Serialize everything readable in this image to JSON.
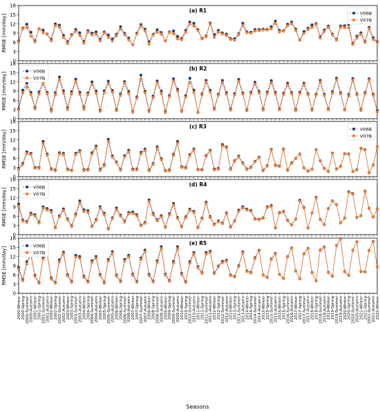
{
  "figure": {
    "xlabel": "Seasons",
    "ylabel": "RMSE [mm/day]",
    "series_colors": {
      "V06B": "#1f3f6e",
      "V07B": "#f07b32"
    },
    "categories": [
      "2000-Winter",
      "2000-Spring",
      "2000-Summer",
      "2000-Autumn",
      "2001-Winter",
      "2001-Spring",
      "2001-Summer",
      "2001-Autumn",
      "2002-Winter",
      "2002-Spring",
      "2002-Summer",
      "2002-Autumn",
      "2003-Winter",
      "2003-Spring",
      "2003-Summer",
      "2003-Autumn",
      "2004-Winter",
      "2004-Spring",
      "2004-Summer",
      "2004-Autumn",
      "2005-Winter",
      "2005-Spring",
      "2005-Summer",
      "2005-Autumn",
      "2006-Winter",
      "2006-Spring",
      "2006-Summer",
      "2006-Autumn",
      "2007-Winter",
      "2007-Spring",
      "2007-Summer",
      "2007-Autumn",
      "2008-Winter",
      "2008-Spring",
      "2008-Summer",
      "2008-Autumn",
      "2009-Winter",
      "2009-Spring",
      "2009-Summer",
      "2009-Autumn",
      "2010-Winter",
      "2010-Spring",
      "2010-Summer",
      "2010-Autumn",
      "2011-Winter",
      "2011-Spring",
      "2011-Summer",
      "2011-Autumn",
      "2012-Winter",
      "2012-Spring",
      "2012-Summer",
      "2012-Autumn",
      "2013-Winter",
      "2013-Spring",
      "2013-Summer",
      "2013-Autumn",
      "2014-Winter",
      "2014-Spring",
      "2014-Summer",
      "2014-Autumn",
      "2015-Winter",
      "2015-Spring",
      "2015-Summer",
      "2015-Autumn",
      "2016-Winter",
      "2016-Spring",
      "2016-Summer",
      "2016-Autumn",
      "2017-Winter",
      "2017-Spring",
      "2017-Summer",
      "2017-Autumn",
      "2018-Winter",
      "2018-Spring",
      "2018-Summer",
      "2018-Autumn",
      "2019-Winter",
      "2019-Spring",
      "2019-Summer",
      "2019-Autumn",
      "2020-Winter",
      "2020-Spring",
      "2020-Summer",
      "2020-Autumn",
      "2021-Winter",
      "2021-Spring",
      "2021-Summer",
      "2021-Autumn",
      "2022-Winter"
    ]
  },
  "chart_data": [
    {
      "type": "line",
      "title": "(a) R1",
      "ylim": [
        0,
        18
      ],
      "yticks": [
        0,
        3,
        6,
        9,
        12,
        15,
        18
      ],
      "legend_position": "upper-right",
      "series": [
        {
          "name": "V06B",
          "values": [
            6.5,
            10.6,
            11.9,
            9.3,
            6.5,
            10.4,
            10.0,
            8.7,
            7.0,
            12.0,
            11.6,
            8.3,
            6.2,
            8.5,
            10.2,
            9.1,
            6.3,
            9.8,
            9.0,
            9.4,
            7.0,
            9.4,
            8.4,
            7.1,
            8.6,
            11.1,
            8.9,
            7.4,
            5.2,
            9.0,
            11.8,
            10.3,
            6.2,
            8.6,
            10.1,
            9.2,
            6.5,
            9.4,
            9.7,
            7.9,
            7.2,
            9.9,
            12.6,
            12.2,
            10.1,
            7.3,
            8.1,
            12.3,
            8.5,
            9.9,
            9.1,
            8.7,
            7.2,
            7.2,
            8.8,
            12.2,
            9.4,
            9.3,
            10.2,
            10.2,
            10.3,
            10.2,
            11.1,
            12.9,
            9.9,
            9.8,
            11.9,
            12.6,
            10.3,
            6.8,
            9.5,
            10.6,
            11.7,
            12.1,
            7.8,
            10.0,
            11.3,
            8.7,
            7.0,
            11.3,
            11.4,
            11.8,
            5.7,
            8.0,
            9.1,
            6.3,
            10.9,
            7.5,
            6.2
          ]
        },
        {
          "name": "V07B",
          "values": [
            6.1,
            10.4,
            10.8,
            8.0,
            6.1,
            10.5,
            9.1,
            8.6,
            6.5,
            11.4,
            10.9,
            7.6,
            5.6,
            8.2,
            9.6,
            8.2,
            5.7,
            9.4,
            8.4,
            8.6,
            6.5,
            9.1,
            7.6,
            6.4,
            8.1,
            10.3,
            8.5,
            6.8,
            5.2,
            8.7,
            11.2,
            9.7,
            5.4,
            8.4,
            9.3,
            8.7,
            6.5,
            9.2,
            8.8,
            7.1,
            6.8,
            9.3,
            12.0,
            11.3,
            9.8,
            7.1,
            7.8,
            12.0,
            7.6,
            9.3,
            8.7,
            8.2,
            6.9,
            6.7,
            8.5,
            11.5,
            9.1,
            9.0,
            9.7,
            9.8,
            10.0,
            10.0,
            10.4,
            12.2,
            9.4,
            9.6,
            11.4,
            12.1,
            9.9,
            6.7,
            8.9,
            10.2,
            10.8,
            11.8,
            7.4,
            9.5,
            10.9,
            8.4,
            6.7,
            10.9,
            10.8,
            10.7,
            5.3,
            7.4,
            8.6,
            6.0,
            10.5,
            6.9,
            5.9
          ]
        }
      ]
    },
    {
      "type": "line",
      "title": "(b) R2",
      "ylim": [
        0,
        18
      ],
      "yticks": [
        0,
        3,
        6,
        9,
        12,
        15,
        18
      ],
      "legend_position": "upper-left",
      "series": [
        {
          "name": "V06B",
          "values": [
            3.2,
            9.3,
            11.6,
            8.6,
            3.7,
            8.7,
            12.0,
            8.6,
            3.0,
            8.5,
            13.6,
            9.1,
            3.6,
            8.8,
            12.9,
            8.6,
            3.7,
            8.4,
            12.0,
            9.0,
            2.8,
            9.1,
            12.2,
            9.2,
            3.0,
            8.1,
            12.1,
            8.9,
            2.4,
            7.1,
            14.2,
            9.0,
            2.7,
            7.4,
            12.3,
            9.0,
            2.4,
            7.6,
            13.0,
            9.6,
            2.6,
            7.5,
            13.2,
            9.3,
            2.1,
            8.1,
            12.5,
            9.3,
            3.4,
            8.0,
            12.5,
            8.5,
            3.2,
            8.2,
            12.8,
            8.4,
            2.9,
            8.6,
            11.9,
            8.9,
            3.2,
            8.7,
            12.4,
            8.6,
            3.3,
            8.3,
            11.6,
            8.5,
            3.0,
            8.6,
            11.6,
            8.2,
            3.0,
            8.0,
            12.5,
            8.0,
            3.2,
            8.8,
            13.2,
            8.5,
            3.0,
            7.9,
            13.1,
            8.1,
            3.0,
            8.5,
            13.0,
            8.0,
            2.7
          ]
        },
        {
          "name": "V07B",
          "values": [
            2.9,
            8.4,
            10.3,
            7.9,
            3.2,
            8.0,
            11.4,
            8.1,
            2.4,
            7.8,
            12.7,
            8.3,
            3.0,
            8.1,
            12.1,
            7.9,
            3.1,
            7.9,
            11.2,
            8.3,
            2.4,
            8.5,
            11.4,
            8.6,
            2.6,
            7.6,
            11.6,
            8.2,
            2.1,
            6.7,
            13.0,
            8.4,
            2.3,
            6.9,
            11.7,
            8.3,
            2.0,
            7.2,
            12.3,
            9.0,
            2.3,
            7.0,
            11.8,
            8.5,
            2.0,
            7.7,
            11.9,
            8.7,
            3.0,
            7.6,
            11.8,
            8.0,
            2.8,
            7.7,
            12.2,
            8.0,
            2.6,
            8.2,
            11.3,
            8.4,
            2.8,
            8.2,
            11.7,
            8.1,
            2.9,
            7.9,
            11.0,
            8.1,
            2.6,
            8.2,
            11.1,
            7.8,
            2.7,
            7.6,
            12.0,
            7.6,
            2.9,
            8.3,
            12.7,
            8.1,
            2.8,
            7.4,
            12.6,
            7.8,
            2.7,
            8.1,
            12.6,
            7.6,
            2.2
          ]
        }
      ]
    },
    {
      "type": "line",
      "title": "(c) R3",
      "ylim": [
        0,
        18
      ],
      "yticks": [
        0,
        3,
        6,
        9,
        12,
        15,
        18
      ],
      "legend_position": "upper-right",
      "series": [
        {
          "name": "V06B",
          "values": [
            2.7,
            4.3,
            8.1,
            7.6,
            3.0,
            3.0,
            11.5,
            7.4,
            2.6,
            2.2,
            7.8,
            7.6,
            2.5,
            2.1,
            7.6,
            8.5,
            2.3,
            2.4,
            7.8,
            10.0,
            2.4,
            3.9,
            12.2,
            6.8,
            4.8,
            2.4,
            6.8,
            8.6,
            2.5,
            2.5,
            7.9,
            9.0,
            2.2,
            4.3,
            9.7,
            5.9,
            2.0,
            2.2,
            7.3,
            11.5,
            3.3,
            3.0,
            7.2,
            9.0,
            2.4,
            2.3,
            6.9,
            8.6,
            2.5,
            2.7,
            10.5,
            9.7,
            2.6,
            5.2,
            6.7,
            4.5,
            2.5,
            3.1,
            5.0,
            6.4,
            2.1,
            3.6,
            8.9,
            3.8,
            3.5,
            9.0,
            2.2,
            4.5,
            6.0,
            7.4,
            2.9,
            1.8,
            2.4,
            8.8,
            5.2,
            2.7,
            1.7,
            7.7,
            2.5,
            3.4,
            7.5,
            7.4,
            1.7,
            2.3,
            9.3,
            8.8,
            1.3,
            3.8,
            9.8
          ]
        },
        {
          "name": "V07B",
          "values": [
            2.4,
            3.9,
            7.6,
            7.2,
            2.7,
            2.7,
            10.8,
            7.0,
            2.3,
            1.9,
            7.4,
            7.2,
            2.2,
            1.9,
            7.2,
            8.1,
            2.0,
            2.1,
            7.3,
            9.5,
            2.0,
            3.5,
            11.5,
            6.3,
            4.5,
            2.1,
            6.4,
            8.1,
            2.2,
            2.2,
            7.5,
            8.5,
            1.9,
            4.0,
            9.2,
            5.5,
            1.8,
            1.9,
            6.9,
            10.9,
            3.0,
            2.7,
            6.9,
            8.6,
            2.2,
            2.1,
            6.6,
            8.3,
            2.2,
            2.4,
            10.0,
            9.4,
            2.3,
            5.0,
            6.4,
            4.3,
            2.3,
            2.9,
            4.8,
            6.2,
            1.9,
            3.4,
            8.7,
            3.6,
            3.3,
            8.8,
            2.0,
            4.3,
            5.9,
            7.3,
            2.8,
            1.7,
            2.3,
            8.7,
            5.1,
            2.6,
            1.6,
            7.6,
            2.4,
            3.3,
            7.4,
            7.3,
            1.6,
            2.2,
            9.2,
            8.7,
            1.2,
            3.7,
            9.7
          ]
        }
      ]
    },
    {
      "type": "line",
      "title": "(d) R4",
      "ylim": [
        0,
        18
      ],
      "yticks": [
        0,
        3,
        6,
        9,
        12,
        15,
        18
      ],
      "legend_position": "upper-left",
      "series": [
        {
          "name": "V06B",
          "values": [
            10.0,
            4.8,
            4.3,
            7.0,
            6.5,
            4.1,
            9.1,
            8.5,
            7.9,
            2.4,
            6.1,
            8.4,
            5.1,
            2.9,
            6.7,
            11.0,
            8.1,
            7.8,
            2.8,
            4.9,
            9.1,
            7.0,
            2.0,
            5.5,
            8.7,
            6.4,
            4.4,
            7.2,
            7.4,
            6.5,
            3.1,
            4.0,
            11.3,
            6.9,
            4.8,
            6.2,
            2.5,
            6.8,
            10.2,
            5.6,
            2.7,
            5.8,
            8.3,
            7.6,
            2.4,
            5.4,
            10.6,
            5.9,
            3.4,
            4.5,
            3.8,
            7.1,
            2.6,
            4.5,
            8.0,
            9.1,
            8.3,
            7.9,
            5.2,
            5.0,
            5.5,
            9.1,
            9.5,
            2.2,
            7.2,
            7.6,
            4.7,
            3.2,
            5.1,
            11.2,
            8.9,
            2.2,
            7.1,
            12.2,
            5.0,
            3.3,
            8.5,
            11.0,
            9.8,
            3.9,
            5.4,
            14.0,
            13.4,
            5.6,
            6.2,
            14.2,
            8.6,
            5.8,
            8.4
          ]
        },
        {
          "name": "V07B",
          "values": [
            9.3,
            4.4,
            4.0,
            6.5,
            6.1,
            3.8,
            8.6,
            8.0,
            7.4,
            2.2,
            5.8,
            7.9,
            4.8,
            2.6,
            6.3,
            10.3,
            7.5,
            7.3,
            2.6,
            4.6,
            8.6,
            6.5,
            1.8,
            5.2,
            8.1,
            6.0,
            4.1,
            6.8,
            6.9,
            6.1,
            2.9,
            3.7,
            10.8,
            6.5,
            4.5,
            5.8,
            2.3,
            6.4,
            9.7,
            5.3,
            2.5,
            5.5,
            7.9,
            7.2,
            2.2,
            5.1,
            10.2,
            5.6,
            3.2,
            4.2,
            3.6,
            6.8,
            2.4,
            4.3,
            7.6,
            8.7,
            8.0,
            7.6,
            5.0,
            4.8,
            5.3,
            8.8,
            9.2,
            2.1,
            7.0,
            7.4,
            4.5,
            3.1,
            5.0,
            10.9,
            8.7,
            2.1,
            7.0,
            12.0,
            4.9,
            3.2,
            8.4,
            10.9,
            9.7,
            3.8,
            5.3,
            13.8,
            13.2,
            5.5,
            6.1,
            14.0,
            8.5,
            5.7,
            8.3
          ]
        }
      ]
    },
    {
      "type": "line",
      "title": "(e) R5",
      "ylim": [
        0,
        18
      ],
      "yticks": [
        0,
        3,
        6,
        9,
        12,
        15,
        18
      ],
      "legend_position": "upper-left",
      "series": [
        {
          "name": "V06B",
          "values": [
            8.4,
            4.5,
            10.3,
            12.9,
            5.9,
            3.6,
            11.6,
            13.1,
            5.0,
            3.6,
            10.9,
            13.4,
            6.1,
            3.9,
            12.4,
            12.0,
            5.6,
            3.9,
            10.6,
            12.0,
            6.2,
            3.6,
            11.0,
            13.6,
            6.0,
            4.0,
            11.0,
            12.4,
            6.3,
            3.9,
            11.5,
            14.1,
            6.2,
            4.0,
            10.6,
            15.2,
            6.3,
            4.2,
            10.4,
            15.2,
            6.5,
            3.8,
            10.3,
            13.3,
            8.7,
            6.8,
            13.3,
            13.7,
            6.7,
            8.9,
            10.4,
            10.8,
            6.0,
            5.5,
            9.0,
            13.5,
            7.3,
            6.8,
            11.6,
            14.0,
            6.0,
            5.2,
            11.2,
            13.0,
            6.2,
            4.9,
            12.0,
            14.8,
            7.3,
            4.8,
            12.9,
            14.7,
            6.8,
            4.1,
            14.1,
            15.1,
            6.9,
            5.6,
            15.6,
            17.8,
            7.1,
            5.9,
            14.1,
            16.8,
            7.1,
            7.0,
            14.0,
            16.9,
            8.6
          ]
        },
        {
          "name": "V07B",
          "values": [
            7.9,
            4.1,
            9.6,
            12.4,
            5.5,
            3.3,
            11.1,
            12.6,
            4.6,
            3.3,
            10.3,
            12.9,
            5.7,
            3.6,
            11.8,
            11.4,
            5.2,
            3.6,
            10.1,
            11.5,
            5.8,
            3.3,
            10.5,
            13.1,
            5.6,
            3.7,
            10.5,
            11.9,
            5.9,
            3.6,
            11.0,
            13.6,
            5.8,
            3.7,
            10.1,
            14.6,
            5.9,
            3.9,
            9.9,
            14.6,
            6.1,
            3.5,
            9.8,
            12.8,
            8.3,
            6.5,
            12.8,
            13.3,
            6.4,
            8.6,
            10.0,
            10.5,
            5.8,
            5.3,
            8.7,
            13.2,
            7.1,
            6.6,
            11.3,
            13.8,
            5.9,
            5.1,
            11.0,
            12.8,
            6.1,
            4.8,
            11.9,
            14.7,
            7.2,
            4.7,
            12.8,
            14.6,
            6.7,
            4.0,
            14.0,
            15.0,
            6.8,
            5.5,
            15.5,
            17.7,
            7.0,
            5.8,
            14.0,
            16.7,
            7.0,
            6.9,
            13.9,
            16.8,
            8.5
          ]
        }
      ]
    }
  ]
}
